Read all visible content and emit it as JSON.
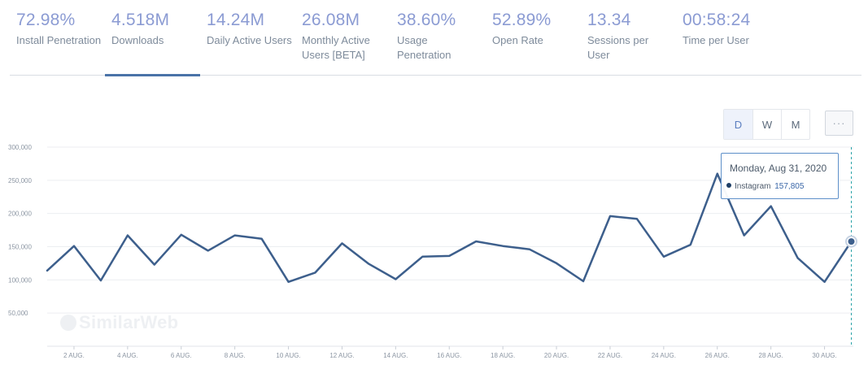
{
  "metrics": [
    {
      "value": "72.98%",
      "label": "Install Penetration"
    },
    {
      "value": "4.518M",
      "label": "Downloads"
    },
    {
      "value": "14.24M",
      "label": "Daily Active Users"
    },
    {
      "value": "26.08M",
      "label": "Monthly Active Users [BETA]"
    },
    {
      "value": "38.60%",
      "label": "Usage Penetration"
    },
    {
      "value": "52.89%",
      "label": "Open Rate"
    },
    {
      "value": "13.34",
      "label": "Sessions per User"
    },
    {
      "value": "00:58:24",
      "label": "Time per User"
    }
  ],
  "active_metric": "Downloads",
  "granularity": {
    "options": [
      "D",
      "W",
      "M"
    ],
    "selected": "D",
    "more_label": "···"
  },
  "watermark": "SimilarWeb",
  "tooltip": {
    "date": "Monday, Aug 31, 2020",
    "series": "Instagram",
    "value": "157,805"
  },
  "colors": {
    "line": "#3d5f8c",
    "accent": "#4a73a8",
    "metric_value": "#8b9bd3",
    "tooltip_border": "#5d8fc9",
    "hover_line": "#2aa3a8"
  },
  "chart_data": {
    "type": "line",
    "title": "",
    "xlabel": "",
    "ylabel": "",
    "x": [
      "1 Aug",
      "2 Aug",
      "3 Aug",
      "4 Aug",
      "5 Aug",
      "6 Aug",
      "7 Aug",
      "8 Aug",
      "9 Aug",
      "10 Aug",
      "11 Aug",
      "12 Aug",
      "13 Aug",
      "14 Aug",
      "15 Aug",
      "16 Aug",
      "17 Aug",
      "18 Aug",
      "19 Aug",
      "20 Aug",
      "21 Aug",
      "22 Aug",
      "23 Aug",
      "24 Aug",
      "25 Aug",
      "26 Aug",
      "27 Aug",
      "28 Aug",
      "29 Aug",
      "30 Aug",
      "31 Aug"
    ],
    "series": [
      {
        "name": "Instagram",
        "values": [
          114000,
          151000,
          99000,
          167000,
          123000,
          168000,
          144000,
          167000,
          162000,
          97000,
          111000,
          155000,
          124000,
          101000,
          135000,
          136000,
          158000,
          151000,
          146000,
          125000,
          98000,
          196000,
          192000,
          135000,
          153000,
          260000,
          167000,
          211000,
          133000,
          97000,
          157805
        ]
      }
    ],
    "ylim": [
      0,
      300000
    ],
    "yticks": [
      50000,
      100000,
      150000,
      200000,
      250000,
      300000
    ],
    "ytick_labels": [
      "50,000",
      "100,000",
      "150,000",
      "200,000",
      "250,000",
      "300,000"
    ],
    "xtick_labels": [
      {
        "day": 2,
        "label": "2 AUG."
      },
      {
        "day": 4,
        "label": "4 AUG."
      },
      {
        "day": 6,
        "label": "6 AUG."
      },
      {
        "day": 8,
        "label": "8 AUG."
      },
      {
        "day": 10,
        "label": "10 AUG."
      },
      {
        "day": 12,
        "label": "12 AUG."
      },
      {
        "day": 14,
        "label": "14 AUG."
      },
      {
        "day": 16,
        "label": "16 AUG."
      },
      {
        "day": 18,
        "label": "18 AUG."
      },
      {
        "day": 20,
        "label": "20 AUG."
      },
      {
        "day": 22,
        "label": "22 AUG."
      },
      {
        "day": 24,
        "label": "24 AUG."
      },
      {
        "day": 26,
        "label": "26 AUG."
      },
      {
        "day": 28,
        "label": "28 AUG."
      },
      {
        "day": 30,
        "label": "30 AUG."
      }
    ],
    "grid": true,
    "highlighted_day": 31
  }
}
